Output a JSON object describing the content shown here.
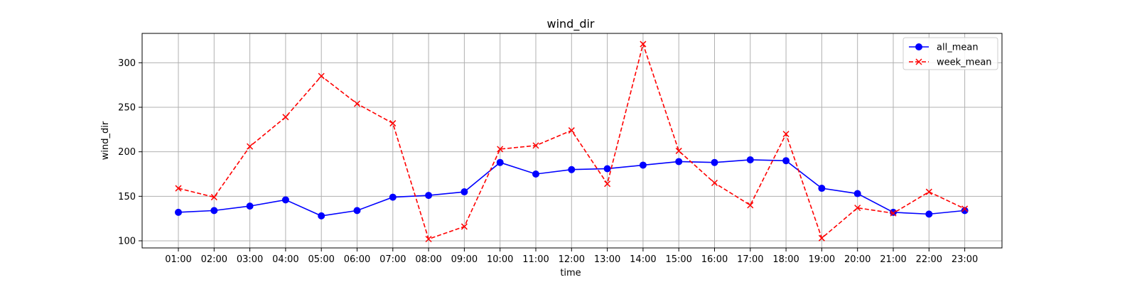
{
  "chart_data": {
    "type": "line",
    "title": "wind_dir",
    "xlabel": "time",
    "ylabel": "wind_dir",
    "categories": [
      "01:00",
      "02:00",
      "03:00",
      "04:00",
      "05:00",
      "06:00",
      "07:00",
      "08:00",
      "09:00",
      "10:00",
      "11:00",
      "12:00",
      "13:00",
      "14:00",
      "15:00",
      "16:00",
      "17:00",
      "18:00",
      "19:00",
      "20:00",
      "21:00",
      "22:00",
      "23:00"
    ],
    "ylim": [
      92,
      333
    ],
    "yticks": [
      100,
      150,
      200,
      250,
      300
    ],
    "grid": true,
    "legend_position": "top-right",
    "series": [
      {
        "name": "all_mean",
        "color": "#0000ff",
        "line_style": "solid",
        "marker": "circle",
        "values": [
          132,
          134,
          139,
          146,
          128,
          134,
          149,
          151,
          155,
          188,
          175,
          180,
          181,
          185,
          189,
          188,
          191,
          190,
          159,
          153,
          132,
          130,
          134
        ]
      },
      {
        "name": "week_mean",
        "color": "#ff0000",
        "line_style": "dashed",
        "marker": "x",
        "values": [
          159,
          149,
          206,
          239,
          285,
          254,
          232,
          102,
          116,
          203,
          207,
          224,
          164,
          321,
          201,
          165,
          140,
          220,
          103,
          137,
          131,
          155,
          136
        ]
      }
    ]
  }
}
